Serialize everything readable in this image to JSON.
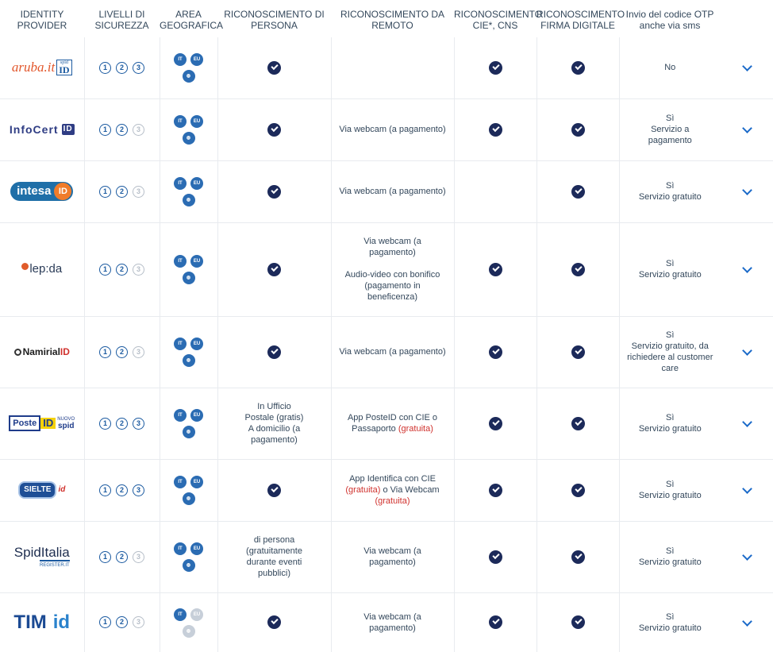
{
  "headers": {
    "provider": "IDENTITY PROVIDER",
    "levels": "LIVELLI DI SICUREZZA",
    "area": "AREA GEOGRAFICA",
    "in_person": "RICONOSCIMENTO DI PERSONA",
    "remote": "RICONOSCIMENTO DA REMOTO",
    "cie": "RICONOSCIMENTO CIE*, CNS",
    "signature": "RICONOSCIMENTO FIRMA DIGITALE",
    "otp": "Invio del codice OTP anche via sms"
  },
  "levels_labels": [
    "1",
    "2",
    "3"
  ],
  "area_labels": [
    "IT",
    "EU"
  ],
  "providers": [
    {
      "logo": {
        "main": "aruba.it",
        "tag": "spid",
        "badge": "ID"
      }
    },
    {
      "logo": {
        "main": "InfoCert",
        "badge": "ID"
      }
    },
    {
      "logo": {
        "main": "intesa",
        "badge": "ID"
      }
    },
    {
      "logo": {
        "main": "lep:da"
      }
    },
    {
      "logo": {
        "main": "Namirial",
        "badge": "ID"
      }
    },
    {
      "logo": {
        "main": "Poste",
        "badge": "ID",
        "tag1": "NUOVO",
        "tag2": "spid"
      }
    },
    {
      "logo": {
        "main": "SIELTE",
        "badge": "id"
      }
    },
    {
      "logo": {
        "main": "SpidItalia",
        "tag": "REGISTER.IT"
      }
    },
    {
      "logo": {
        "main": "TIM",
        "badge": "id"
      }
    }
  ],
  "rows_text": {
    "r0": {
      "otp": "No"
    },
    "r1": {
      "remote": "Via webcam (a pagamento)",
      "otp1": "Sì",
      "otp2": "Servizio a pagamento"
    },
    "r2": {
      "remote": "Via webcam (a pagamento)",
      "otp1": "Sì",
      "otp2": "Servizio gratuito"
    },
    "r3": {
      "remote1": "Via webcam (a pagamento)",
      "remote2": "Audio-video con bonifico (pagamento in beneficenza)",
      "otp1": "Sì",
      "otp2": "Servizio gratuito"
    },
    "r4": {
      "remote": "Via webcam (a pagamento)",
      "otp1": "Sì",
      "otp2": "Servizio gratuito, da richiedere al customer care"
    },
    "r5": {
      "in_person1": "In Ufficio Postale (gratis)",
      "in_person2": "A domicilio (a pagamento)",
      "remote_a": "App PosteID con CIE o Passaporto",
      "remote_b": "(gratuita)",
      "otp1": "Sì",
      "otp2": "Servizio gratuito"
    },
    "r6": {
      "remote_a": "App Identifica con CIE",
      "remote_b": "(gratuita)",
      "remote_c": "o Via Webcam",
      "remote_d": "(gratuita)",
      "otp1": "Sì",
      "otp2": "Servizio gratuito"
    },
    "r7": {
      "in_person": "di persona (gratuitamente durante eventi pubblici)",
      "remote": "Via webcam (a pagamento)",
      "otp1": "Sì",
      "otp2": "Servizio gratuito"
    },
    "r8": {
      "remote": "Via webcam (a pagamento)",
      "otp1": "Sì",
      "otp2": "Servizio gratuito"
    }
  },
  "colors": {
    "accent": "#1b5aa0",
    "check": "#1c2a5a",
    "free": "#d0312d",
    "chevron": "#1b6ac9"
  }
}
